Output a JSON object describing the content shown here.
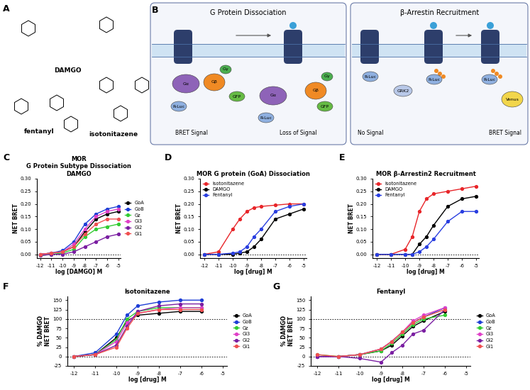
{
  "panel_labels": [
    "A",
    "B",
    "C",
    "D",
    "E",
    "F",
    "G"
  ],
  "structures": [
    "DAMGO",
    "fentanyl",
    "isotonitazene"
  ],
  "diagrams": [
    {
      "title": "G Protein Dissociation",
      "nodes": [
        "Gα",
        "Gβ",
        "Gγ",
        "R-Luc",
        "GFP",
        "Gα",
        "Gβ",
        "Gγ",
        "R-Luc",
        "GFP"
      ],
      "captions": [
        "BRET Signal",
        "Loss of Signal"
      ]
    },
    {
      "title": "β-Arrestin Recruitment",
      "nodes": [
        "R-Luc",
        "GRK2",
        "R-Luc",
        "R-Luc",
        "Venus"
      ],
      "captions": [
        "No Signal",
        "BRET Signal"
      ]
    }
  ],
  "chart_data": [
    {
      "type": "line",
      "title": "MOR\nG Protein Subtype Dissociation\nDAMGO",
      "x_label": "log [DAMGO] M",
      "y_label": "NET BRET",
      "x": [
        -12,
        -11,
        -10,
        -9,
        -8,
        -7,
        -6,
        -5
      ],
      "xlim": [
        -12.3,
        -4.8
      ],
      "xticks": [
        -12,
        -11,
        -10,
        -9,
        -8,
        -7,
        -6,
        -5
      ],
      "ylim": [
        -0.015,
        0.3
      ],
      "yticks": [
        {
          "value": 0,
          "label": "0.00"
        },
        {
          "value": 0.05,
          "label": "0.05"
        },
        {
          "value": 0.1,
          "label": "0.10"
        },
        {
          "value": 0.15,
          "label": "0.15"
        },
        {
          "value": 0.2,
          "label": "0.20"
        },
        {
          "value": 0.25,
          "label": "0.25"
        },
        {
          "value": 0.3,
          "label": "0.30"
        }
      ],
      "reference_lines": [
        0
      ],
      "legend": "right",
      "marker": "circle",
      "line_style": "solid",
      "series": [
        {
          "name": "GoA",
          "color": "#000000",
          "values": [
            0,
            0.005,
            0.01,
            0.03,
            0.09,
            0.14,
            0.16,
            0.17
          ]
        },
        {
          "name": "GoB",
          "color": "#1f3fd6",
          "values": [
            0,
            0.005,
            0.015,
            0.05,
            0.12,
            0.16,
            0.18,
            0.19
          ]
        },
        {
          "name": "Gz",
          "color": "#33cc33",
          "values": [
            -0.005,
            0.0,
            0.005,
            0.02,
            0.07,
            0.1,
            0.11,
            0.12
          ]
        },
        {
          "name": "Gi3",
          "color": "#e040c8",
          "values": [
            0,
            0.005,
            0.01,
            0.04,
            0.1,
            0.15,
            0.17,
            0.18
          ]
        },
        {
          "name": "Gi2",
          "color": "#7b1fa2",
          "values": [
            -0.005,
            0,
            0,
            0.01,
            0.03,
            0.05,
            0.07,
            0.08
          ]
        },
        {
          "name": "Gi1",
          "color": "#f05050",
          "values": [
            0,
            0.005,
            0.01,
            0.03,
            0.08,
            0.12,
            0.14,
            0.14
          ]
        }
      ]
    },
    {
      "type": "line",
      "title": "MOR G protein (GoA) Dissociation",
      "x_label": "log [drug] M",
      "y_label": "NET BRET",
      "x": [
        -12,
        -11,
        -10,
        -9.5,
        -9,
        -8.5,
        -8,
        -7,
        -6,
        -5
      ],
      "xlim": [
        -12.3,
        -4.8
      ],
      "xticks": [
        -12,
        -11,
        -10,
        -9,
        -8,
        -7,
        -6,
        -5
      ],
      "ylim": [
        -0.015,
        0.3
      ],
      "yticks": [
        {
          "value": 0,
          "label": "0.00"
        },
        {
          "value": 0.05,
          "label": "0.05"
        },
        {
          "value": 0.1,
          "label": "0.10"
        },
        {
          "value": 0.15,
          "label": "0.15"
        },
        {
          "value": 0.2,
          "label": "0.20"
        },
        {
          "value": 0.25,
          "label": "0.25"
        },
        {
          "value": 0.3,
          "label": "0.30"
        }
      ],
      "reference_lines": [
        0
      ],
      "legend": "upper left",
      "marker": "circle",
      "line_style": "solid",
      "series": [
        {
          "name": "Isotonitazene",
          "color": "#e8262a",
          "values": [
            0,
            0.01,
            0.1,
            0.14,
            0.17,
            0.185,
            0.19,
            0.195,
            0.2,
            0.2
          ]
        },
        {
          "name": "DAMGO",
          "color": "#000000",
          "values": [
            0,
            0,
            0,
            0.005,
            0.01,
            0.03,
            0.06,
            0.14,
            0.16,
            0.18
          ]
        },
        {
          "name": "Fentanyl",
          "color": "#2a3fe0",
          "values": [
            0,
            0,
            0.005,
            0.01,
            0.03,
            0.07,
            0.1,
            0.17,
            0.19,
            0.2
          ]
        }
      ]
    },
    {
      "type": "line",
      "title": "MOR β-Arrestin2 Recruitment",
      "x_label": "log [drug] M",
      "y_label": "NET BRET",
      "x": [
        -12,
        -11,
        -10,
        -9.5,
        -9,
        -8.5,
        -8,
        -7,
        -6,
        -5
      ],
      "xlim": [
        -12.3,
        -4.8
      ],
      "xticks": [
        -12,
        -11,
        -10,
        -9,
        -8,
        -7,
        -6,
        -5
      ],
      "ylim": [
        -0.015,
        0.3
      ],
      "yticks": [
        {
          "value": 0,
          "label": "0.00"
        },
        {
          "value": 0.05,
          "label": "0.05"
        },
        {
          "value": 0.1,
          "label": "0.10"
        },
        {
          "value": 0.15,
          "label": "0.15"
        },
        {
          "value": 0.2,
          "label": "0.20"
        },
        {
          "value": 0.25,
          "label": "0.25"
        },
        {
          "value": 0.3,
          "label": "0.30"
        }
      ],
      "reference_lines": [
        0
      ],
      "legend": "upper left",
      "marker": "circle",
      "line_style": "solid",
      "series": [
        {
          "name": "Isotonitazene",
          "color": "#e8262a",
          "values": [
            0,
            0,
            0.02,
            0.07,
            0.17,
            0.22,
            0.24,
            0.25,
            0.26,
            0.27
          ]
        },
        {
          "name": "DAMGO",
          "color": "#000000",
          "values": [
            0,
            0,
            0,
            0,
            0.04,
            0.07,
            0.115,
            0.19,
            0.22,
            0.23
          ]
        },
        {
          "name": "Fentanyl",
          "color": "#2a3fe0",
          "values": [
            0,
            0,
            0,
            0,
            0.01,
            0.03,
            0.06,
            0.13,
            0.17,
            0.17
          ]
        }
      ]
    },
    {
      "type": "line",
      "title": "Isotonitazene",
      "x_label": "log [drug] M",
      "y_label": "% DAMGO\nNET BRET",
      "x": [
        -12,
        -11,
        -10,
        -9.5,
        -9,
        -8,
        -7,
        -6
      ],
      "xlim": [
        -12.3,
        -4.8
      ],
      "xticks": [
        -12,
        -11,
        -10,
        -9,
        -8,
        -7,
        -6,
        -5
      ],
      "ylim": [
        -25,
        160
      ],
      "yticks": [
        -25,
        0,
        25,
        50,
        75,
        100,
        125,
        150
      ],
      "reference_lines": [
        0,
        100
      ],
      "legend": "right",
      "marker": "circle",
      "line_style": "solid",
      "series": [
        {
          "name": "GoA",
          "color": "#000000",
          "values": [
            0,
            5,
            50,
            95,
            110,
            115,
            120,
            120
          ]
        },
        {
          "name": "GoB",
          "color": "#1f3fd6",
          "values": [
            0,
            10,
            60,
            110,
            135,
            145,
            150,
            150
          ]
        },
        {
          "name": "Gz",
          "color": "#33cc33",
          "values": [
            0,
            5,
            45,
            100,
            120,
            130,
            130,
            130
          ]
        },
        {
          "name": "Gi3",
          "color": "#e040c8",
          "values": [
            0,
            5,
            40,
            90,
            115,
            125,
            130,
            130
          ]
        },
        {
          "name": "Gi2",
          "color": "#7b1fa2",
          "values": [
            0,
            5,
            30,
            80,
            120,
            135,
            140,
            140
          ]
        },
        {
          "name": "Gi1",
          "color": "#f05050",
          "values": [
            0,
            5,
            25,
            75,
            115,
            125,
            125,
            125
          ]
        }
      ]
    },
    {
      "type": "line",
      "title": "Fentanyl",
      "x_label": "log [drug] M",
      "y_label": "% DAMGO\nNET BRET",
      "x": [
        -12,
        -11,
        -10,
        -9,
        -8.5,
        -8,
        -7.5,
        -7,
        -6
      ],
      "xlim": [
        -12.3,
        -4.8
      ],
      "xticks": [
        -12,
        -11,
        -10,
        -9,
        -8,
        -7,
        -6,
        -5
      ],
      "ylim": [
        -25,
        160
      ],
      "yticks": [
        -25,
        0,
        25,
        50,
        75,
        100,
        125,
        150
      ],
      "reference_lines": [
        0,
        100
      ],
      "legend": "right",
      "marker": "circle",
      "line_style": "solid",
      "series": [
        {
          "name": "GoA",
          "color": "#000000",
          "values": [
            0,
            0,
            5,
            15,
            30,
            55,
            80,
            95,
            120
          ]
        },
        {
          "name": "GoB",
          "color": "#1f3fd6",
          "values": [
            0,
            0,
            5,
            20,
            40,
            65,
            90,
            105,
            130
          ]
        },
        {
          "name": "Gz",
          "color": "#33cc33",
          "values": [
            5,
            0,
            5,
            15,
            35,
            60,
            85,
            100,
            110
          ]
        },
        {
          "name": "Gi3",
          "color": "#e040c8",
          "values": [
            0,
            0,
            5,
            20,
            40,
            65,
            95,
            110,
            130
          ]
        },
        {
          "name": "Gi2",
          "color": "#7b1fa2",
          "values": [
            0,
            0,
            -5,
            -15,
            10,
            30,
            60,
            70,
            125
          ]
        },
        {
          "name": "Gi1",
          "color": "#f05050",
          "values": [
            5,
            0,
            5,
            20,
            40,
            65,
            90,
            105,
            125
          ]
        }
      ]
    }
  ]
}
